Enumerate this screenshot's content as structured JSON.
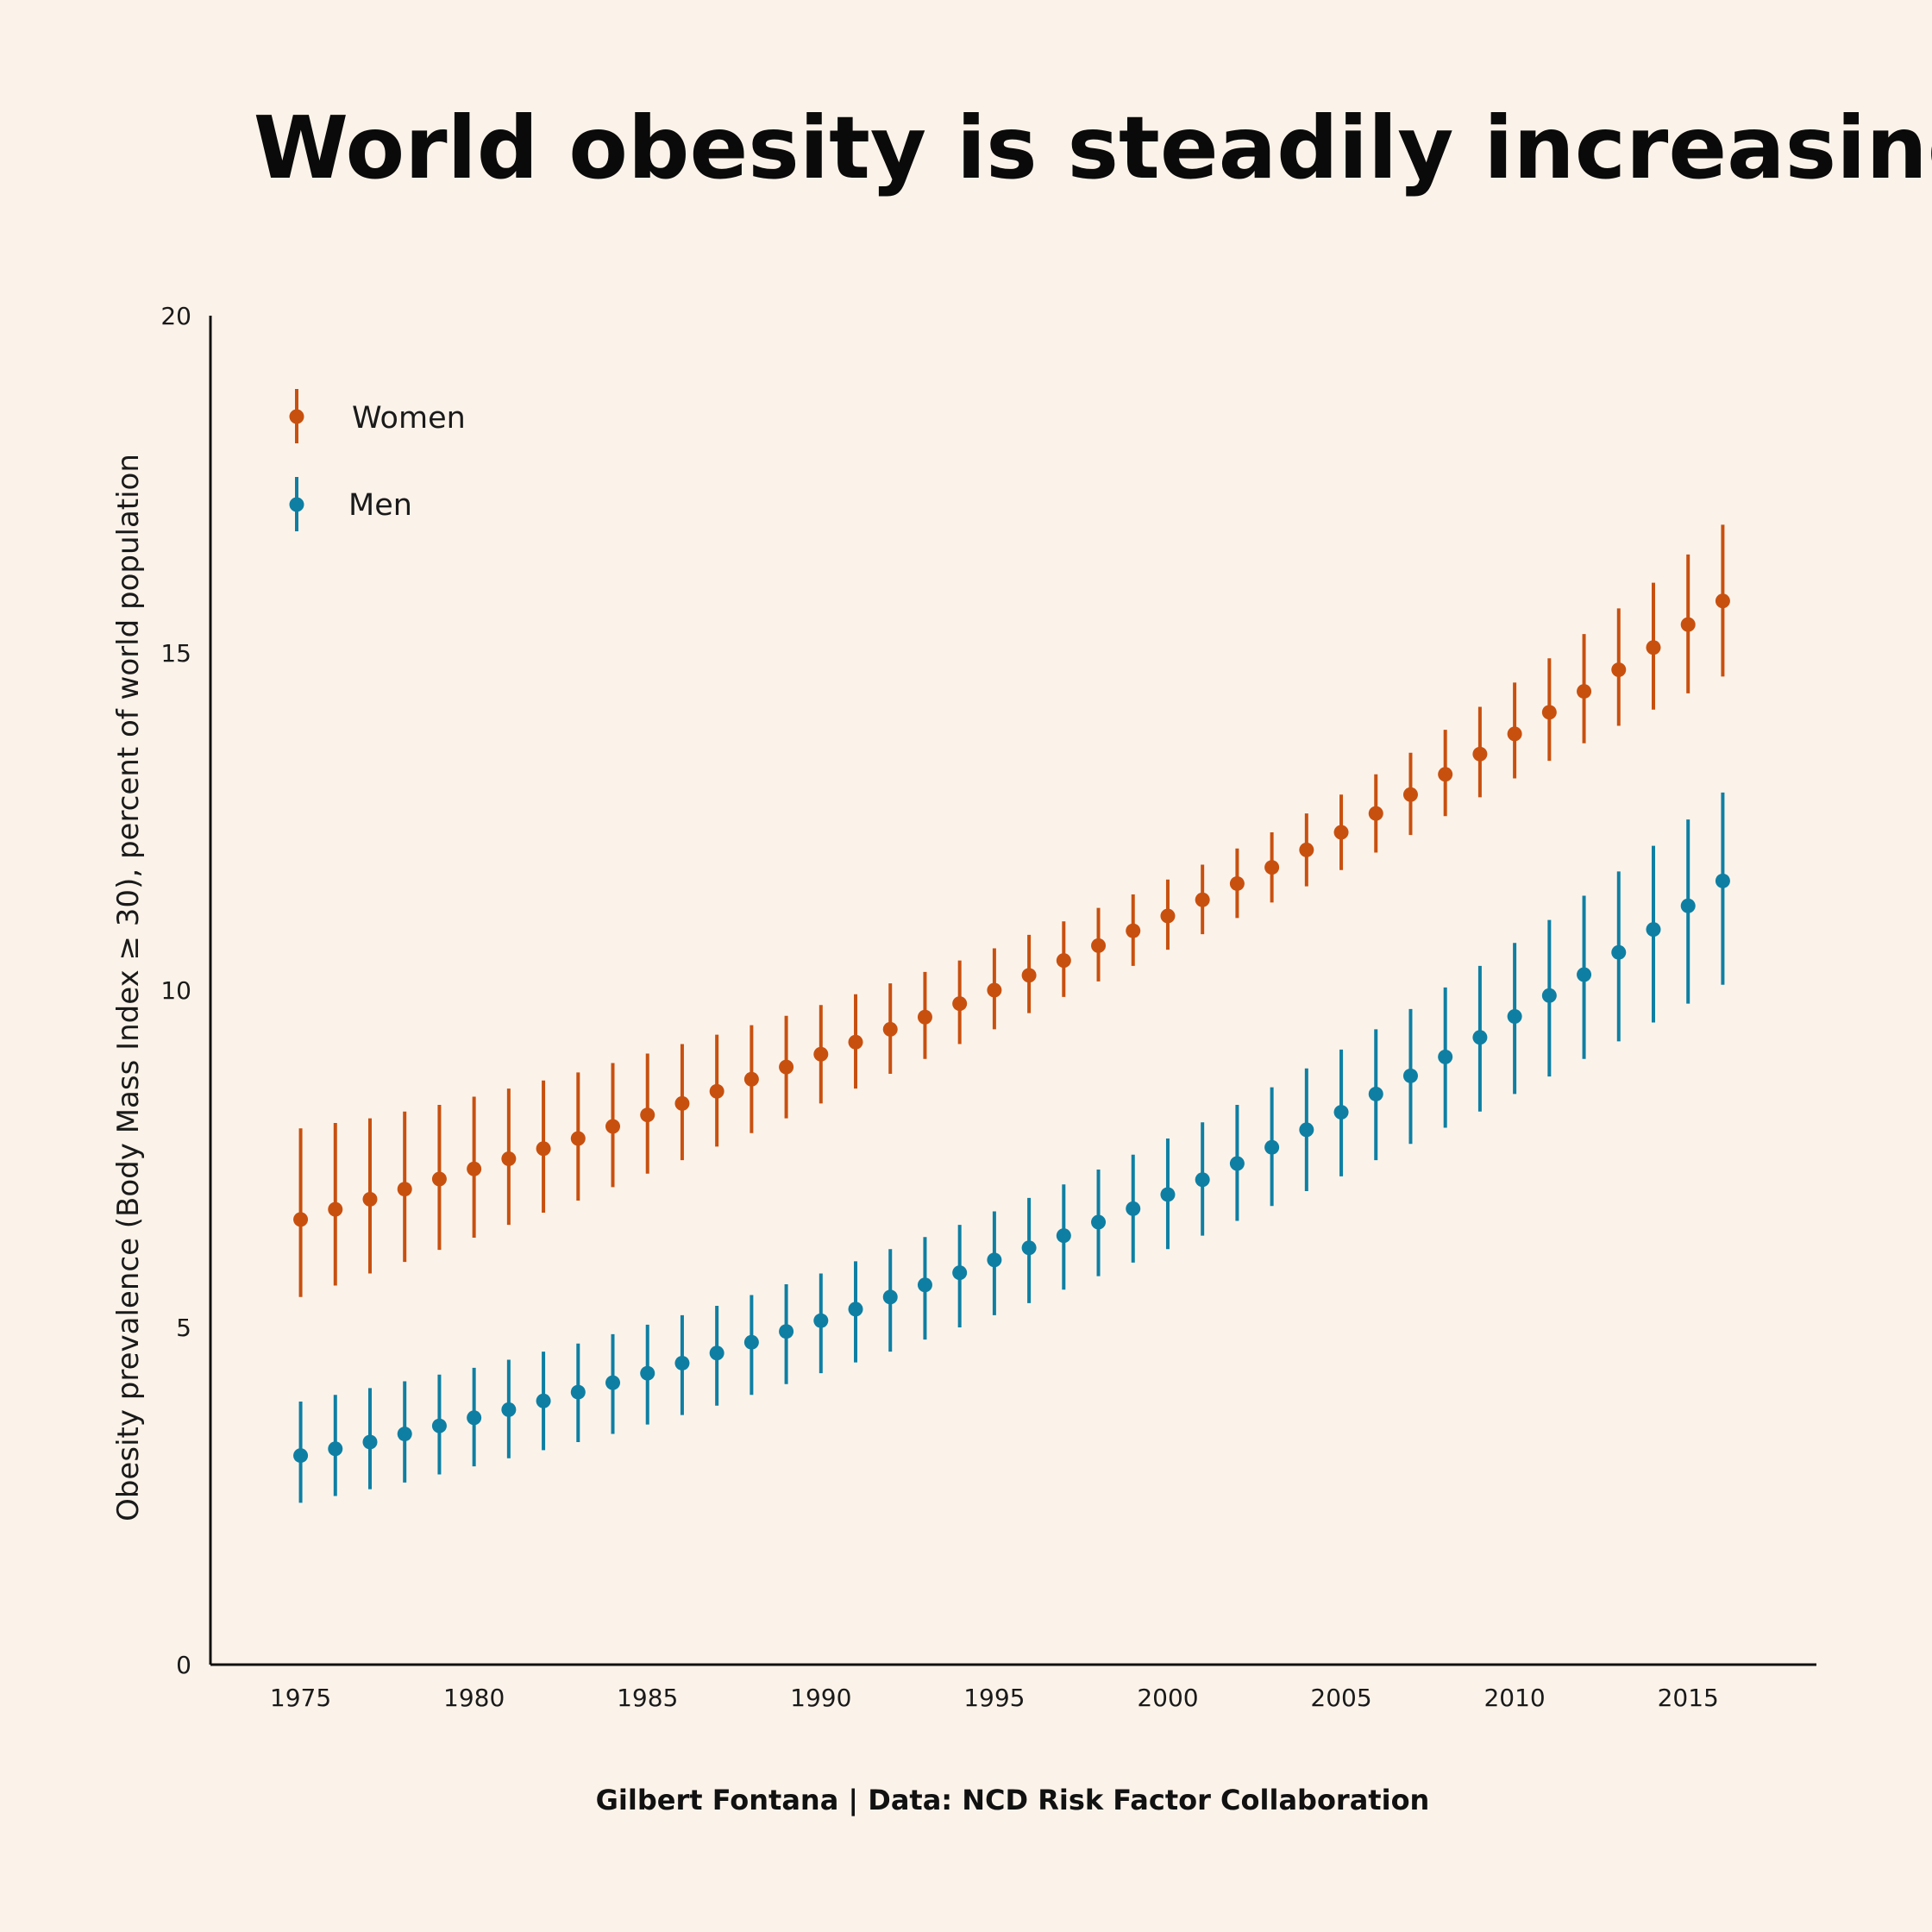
{
  "chart_data": {
    "type": "scatter",
    "title": "World obesity is steadily increasing",
    "ylabel": "Obesity prevalence (Body Mass Index ≥ 30), percent of world population",
    "xlabel": "",
    "caption": "Gilbert Fontana | Data: NCD Risk Factor Collaboration",
    "ylim": [
      0,
      20
    ],
    "xlim": [
      1972.4,
      2018.7
    ],
    "x_ticks": [
      "1975",
      "1980",
      "1985",
      "1990",
      "1995",
      "2000",
      "2005",
      "2010",
      "2015"
    ],
    "y_ticks": [
      "0",
      "5",
      "10",
      "15",
      "20"
    ],
    "grid": false,
    "legend_position": "top-left",
    "x": [
      1975,
      1976,
      1977,
      1978,
      1979,
      1980,
      1981,
      1982,
      1983,
      1984,
      1985,
      1986,
      1987,
      1988,
      1989,
      1990,
      1991,
      1992,
      1993,
      1994,
      1995,
      1996,
      1997,
      1998,
      1999,
      2000,
      2001,
      2002,
      2003,
      2004,
      2005,
      2006,
      2007,
      2008,
      2009,
      2010,
      2011,
      2012,
      2013,
      2014,
      2015,
      2016
    ],
    "series": [
      {
        "name": "Women",
        "color": "#C8500F",
        "values": [
          6.6,
          6.75,
          6.9,
          7.05,
          7.2,
          7.35,
          7.5,
          7.65,
          7.8,
          7.98,
          8.15,
          8.32,
          8.5,
          8.68,
          8.86,
          9.05,
          9.23,
          9.42,
          9.6,
          9.8,
          10.0,
          10.22,
          10.44,
          10.66,
          10.88,
          11.1,
          11.34,
          11.58,
          11.82,
          12.08,
          12.34,
          12.62,
          12.9,
          13.2,
          13.5,
          13.8,
          14.12,
          14.43,
          14.75,
          15.08,
          15.42,
          15.77
        ],
        "lower": [
          5.45,
          5.62,
          5.8,
          5.97,
          6.15,
          6.33,
          6.52,
          6.7,
          6.88,
          7.08,
          7.28,
          7.48,
          7.68,
          7.88,
          8.1,
          8.32,
          8.54,
          8.76,
          8.98,
          9.2,
          9.42,
          9.66,
          9.9,
          10.13,
          10.36,
          10.6,
          10.83,
          11.07,
          11.3,
          11.54,
          11.78,
          12.04,
          12.3,
          12.58,
          12.86,
          13.14,
          13.4,
          13.66,
          13.92,
          14.16,
          14.4,
          14.65
        ],
        "upper": [
          7.95,
          8.03,
          8.1,
          8.2,
          8.3,
          8.42,
          8.54,
          8.66,
          8.78,
          8.92,
          9.06,
          9.2,
          9.34,
          9.48,
          9.62,
          9.78,
          9.94,
          10.1,
          10.27,
          10.44,
          10.62,
          10.82,
          11.02,
          11.22,
          11.42,
          11.64,
          11.86,
          12.1,
          12.34,
          12.62,
          12.9,
          13.2,
          13.52,
          13.86,
          14.2,
          14.56,
          14.92,
          15.28,
          15.66,
          16.04,
          16.46,
          16.9
        ]
      },
      {
        "name": "Men",
        "color": "#0E7FA3",
        "values": [
          3.1,
          3.2,
          3.3,
          3.42,
          3.54,
          3.66,
          3.78,
          3.91,
          4.04,
          4.18,
          4.32,
          4.47,
          4.62,
          4.78,
          4.94,
          5.1,
          5.27,
          5.45,
          5.63,
          5.81,
          6.0,
          6.18,
          6.36,
          6.56,
          6.76,
          6.97,
          7.19,
          7.43,
          7.67,
          7.93,
          8.19,
          8.46,
          8.73,
          9.01,
          9.3,
          9.61,
          9.92,
          10.23,
          10.56,
          10.9,
          11.25,
          11.62
        ],
        "lower": [
          2.4,
          2.5,
          2.6,
          2.7,
          2.82,
          2.94,
          3.06,
          3.18,
          3.3,
          3.42,
          3.56,
          3.7,
          3.84,
          4.0,
          4.16,
          4.32,
          4.48,
          4.64,
          4.82,
          5.0,
          5.18,
          5.36,
          5.56,
          5.76,
          5.96,
          6.16,
          6.36,
          6.58,
          6.8,
          7.02,
          7.24,
          7.48,
          7.72,
          7.96,
          8.2,
          8.46,
          8.72,
          8.98,
          9.24,
          9.52,
          9.8,
          10.08
        ],
        "upper": [
          3.9,
          4.0,
          4.1,
          4.2,
          4.3,
          4.4,
          4.52,
          4.64,
          4.76,
          4.9,
          5.04,
          5.18,
          5.32,
          5.48,
          5.64,
          5.8,
          5.98,
          6.16,
          6.34,
          6.52,
          6.72,
          6.92,
          7.12,
          7.34,
          7.56,
          7.8,
          8.04,
          8.3,
          8.56,
          8.84,
          9.12,
          9.42,
          9.72,
          10.04,
          10.36,
          10.7,
          11.04,
          11.4,
          11.76,
          12.14,
          12.53,
          12.93
        ]
      }
    ]
  }
}
